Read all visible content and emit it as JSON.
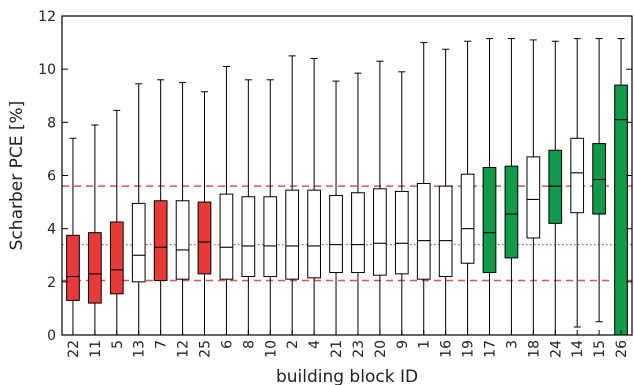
{
  "chart_data": {
    "type": "box",
    "xlabel": "building block ID",
    "ylabel": "Scharber PCE [%]",
    "ylim": [
      0,
      12
    ],
    "yticks": [
      0,
      2,
      4,
      6,
      8,
      10,
      12
    ],
    "grid": false,
    "reference_lines": [
      {
        "value": 5.6,
        "style": "dashed",
        "color": "#e05050"
      },
      {
        "value": 3.4,
        "style": "dotted",
        "color": "#e05050"
      },
      {
        "value": 2.05,
        "style": "dashed",
        "color": "#e05050"
      }
    ],
    "colors": {
      "low": "#e83a3a",
      "neutral": "#ffffff",
      "high": "#109a4a"
    },
    "boxes": [
      {
        "label": "22",
        "whisker_low": 0.0,
        "q1": 1.3,
        "median": 2.2,
        "q3": 3.75,
        "whisker_high": 7.4,
        "group": "low"
      },
      {
        "label": "11",
        "whisker_low": 0.0,
        "q1": 1.2,
        "median": 2.3,
        "q3": 3.85,
        "whisker_high": 7.9,
        "group": "low"
      },
      {
        "label": "5",
        "whisker_low": 0.0,
        "q1": 1.55,
        "median": 2.45,
        "q3": 4.25,
        "whisker_high": 8.45,
        "group": "low"
      },
      {
        "label": "13",
        "whisker_low": 0.0,
        "q1": 2.0,
        "median": 3.0,
        "q3": 4.95,
        "whisker_high": 9.45,
        "group": "neutral"
      },
      {
        "label": "7",
        "whisker_low": 0.0,
        "q1": 2.05,
        "median": 3.3,
        "q3": 5.05,
        "whisker_high": 9.6,
        "group": "low"
      },
      {
        "label": "12",
        "whisker_low": 0.0,
        "q1": 2.1,
        "median": 3.2,
        "q3": 5.05,
        "whisker_high": 9.5,
        "group": "neutral"
      },
      {
        "label": "25",
        "whisker_low": 0.0,
        "q1": 2.3,
        "median": 3.5,
        "q3": 5.0,
        "whisker_high": 9.15,
        "group": "low"
      },
      {
        "label": "6",
        "whisker_low": 0.0,
        "q1": 2.1,
        "median": 3.3,
        "q3": 5.3,
        "whisker_high": 10.1,
        "group": "neutral"
      },
      {
        "label": "8",
        "whisker_low": 0.0,
        "q1": 2.2,
        "median": 3.35,
        "q3": 5.2,
        "whisker_high": 9.6,
        "group": "neutral"
      },
      {
        "label": "10",
        "whisker_low": 0.0,
        "q1": 2.2,
        "median": 3.35,
        "q3": 5.2,
        "whisker_high": 9.6,
        "group": "neutral"
      },
      {
        "label": "2",
        "whisker_low": 0.0,
        "q1": 2.1,
        "median": 3.35,
        "q3": 5.45,
        "whisker_high": 10.5,
        "group": "neutral"
      },
      {
        "label": "4",
        "whisker_low": 0.0,
        "q1": 2.15,
        "median": 3.35,
        "q3": 5.45,
        "whisker_high": 10.4,
        "group": "neutral"
      },
      {
        "label": "21",
        "whisker_low": 0.0,
        "q1": 2.35,
        "median": 3.4,
        "q3": 5.25,
        "whisker_high": 9.55,
        "group": "neutral"
      },
      {
        "label": "23",
        "whisker_low": 0.0,
        "q1": 2.35,
        "median": 3.4,
        "q3": 5.35,
        "whisker_high": 9.85,
        "group": "neutral"
      },
      {
        "label": "20",
        "whisker_low": 0.0,
        "q1": 2.25,
        "median": 3.45,
        "q3": 5.5,
        "whisker_high": 10.3,
        "group": "neutral"
      },
      {
        "label": "9",
        "whisker_low": 0.0,
        "q1": 2.3,
        "median": 3.45,
        "q3": 5.4,
        "whisker_high": 9.9,
        "group": "neutral"
      },
      {
        "label": "1",
        "whisker_low": 0.0,
        "q1": 2.1,
        "median": 3.55,
        "q3": 5.7,
        "whisker_high": 11.0,
        "group": "neutral"
      },
      {
        "label": "16",
        "whisker_low": 0.0,
        "q1": 2.2,
        "median": 3.55,
        "q3": 5.6,
        "whisker_high": 10.75,
        "group": "neutral"
      },
      {
        "label": "19",
        "whisker_low": 0.0,
        "q1": 2.7,
        "median": 4.0,
        "q3": 6.05,
        "whisker_high": 11.05,
        "group": "neutral"
      },
      {
        "label": "17",
        "whisker_low": 0.0,
        "q1": 2.35,
        "median": 3.85,
        "q3": 6.3,
        "whisker_high": 11.15,
        "group": "high"
      },
      {
        "label": "3",
        "whisker_low": 0.0,
        "q1": 2.9,
        "median": 4.55,
        "q3": 6.35,
        "whisker_high": 11.15,
        "group": "high"
      },
      {
        "label": "18",
        "whisker_low": 0.0,
        "q1": 3.65,
        "median": 5.1,
        "q3": 6.7,
        "whisker_high": 11.1,
        "group": "neutral"
      },
      {
        "label": "24",
        "whisker_low": 0.0,
        "q1": 4.2,
        "median": 5.6,
        "q3": 6.95,
        "whisker_high": 11.05,
        "group": "high"
      },
      {
        "label": "14",
        "whisker_low": 0.3,
        "q1": 4.6,
        "median": 6.1,
        "q3": 7.4,
        "whisker_high": 11.15,
        "group": "neutral"
      },
      {
        "label": "15",
        "whisker_low": 0.5,
        "q1": 4.55,
        "median": 5.85,
        "q3": 7.2,
        "whisker_high": 11.15,
        "group": "high"
      },
      {
        "label": "26",
        "whisker_low": 0.0,
        "q1": 0.0,
        "median": 8.1,
        "q3": 9.4,
        "whisker_high": 11.15,
        "group": "high"
      }
    ]
  }
}
